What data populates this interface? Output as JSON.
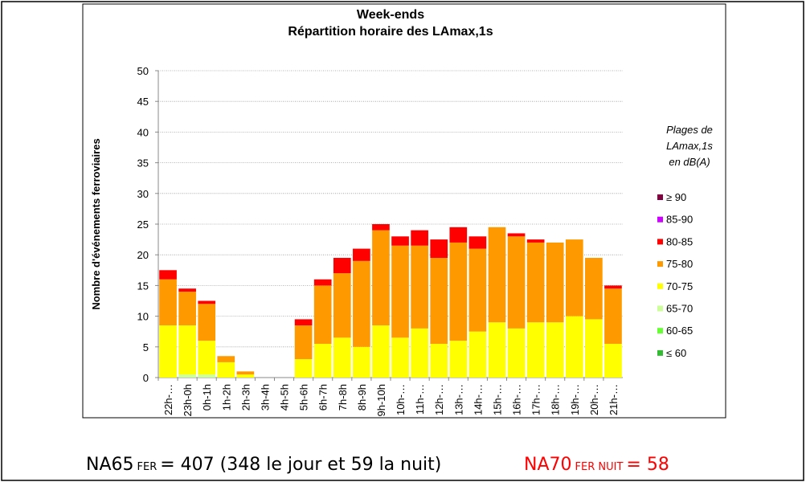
{
  "chart_data": {
    "type": "stacked_bar",
    "title": [
      "Week-ends",
      "Répartition horaire des LAmax,1s"
    ],
    "y_label": "Nombre d'événements ferroviaires",
    "legend_title": [
      "Plages de",
      "LAmax,1s",
      "en dB(A)"
    ],
    "categories": [
      "22h-…",
      "23h-0h",
      "0h-1h",
      "1h-2h",
      "2h-3h",
      "3h-4h",
      "4h-5h",
      "5h-6h",
      "6h-7h",
      "7h-8h",
      "8h-9h",
      "9h-10h",
      "10h-…",
      "11h-…",
      "12h-…",
      "13h-…",
      "14h-…",
      "15h-…",
      "16h-…",
      "17h-…",
      "18h-…",
      "19h-…",
      "20h-…",
      "21h-…"
    ],
    "series": [
      {
        "name": "≤  60",
        "color": "#33bb33",
        "values": [
          0,
          0,
          0,
          0,
          0,
          0,
          0,
          0,
          0,
          0,
          0,
          0,
          0,
          0,
          0,
          0,
          0,
          0,
          0,
          0,
          0,
          0,
          0,
          0
        ]
      },
      {
        "name": "60-65",
        "color": "#66ff33",
        "values": [
          0,
          0,
          0,
          0,
          0,
          0,
          0,
          0,
          0,
          0,
          0,
          0,
          0,
          0,
          0,
          0,
          0,
          0,
          0,
          0,
          0,
          0,
          0,
          0
        ]
      },
      {
        "name": "65-70",
        "color": "#ccff99",
        "values": [
          0,
          0.5,
          0.5,
          0,
          0,
          0,
          0,
          0,
          0,
          0,
          0,
          0,
          0,
          0,
          0,
          0,
          0,
          0,
          0,
          0,
          0,
          0,
          0,
          0
        ]
      },
      {
        "name": "70-75",
        "color": "#ffff00",
        "values": [
          8.5,
          8,
          5.5,
          2.5,
          0.5,
          0,
          0,
          3,
          5.5,
          6.5,
          5,
          8.5,
          6.5,
          8,
          5.5,
          6,
          7.5,
          9,
          8,
          9,
          9,
          10,
          9.5,
          5.5
        ]
      },
      {
        "name": "75-80",
        "color": "#ff9900",
        "values": [
          7.5,
          5.5,
          6,
          1,
          0.5,
          0,
          0,
          5.5,
          9.5,
          10.5,
          14,
          15.5,
          15,
          13.5,
          14,
          16,
          13.5,
          15.5,
          15,
          13,
          13,
          12.5,
          10,
          9
        ]
      },
      {
        "name": "80-85",
        "color": "#ff0000",
        "values": [
          1.5,
          0.5,
          0.5,
          0,
          0,
          0,
          0,
          1,
          1,
          2.5,
          2,
          1,
          1.5,
          2.5,
          3,
          2.5,
          2,
          0,
          0.5,
          0.5,
          0,
          0,
          0,
          0.5
        ]
      },
      {
        "name": "85-90",
        "color": "#cc00ff",
        "values": [
          0,
          0,
          0,
          0,
          0,
          0,
          0,
          0,
          0,
          0,
          0,
          0,
          0,
          0,
          0,
          0,
          0,
          0,
          0,
          0,
          0,
          0,
          0,
          0
        ]
      },
      {
        "name": "≥ 90",
        "color": "#800040",
        "values": [
          0,
          0,
          0,
          0,
          0,
          0,
          0,
          0,
          0,
          0,
          0,
          0,
          0,
          0,
          0,
          0,
          0,
          0,
          0,
          0,
          0,
          0,
          0,
          0
        ]
      }
    ],
    "ylim": [
      0,
      50
    ],
    "yticks": [
      0,
      5,
      10,
      15,
      20,
      25,
      30,
      35,
      40,
      45,
      50
    ],
    "grid": true
  },
  "footer": {
    "left": {
      "main": "NA65",
      "sub": "FER",
      "rest": "= 407 (348 le jour et 59 la nuit)"
    },
    "right": {
      "main": "NA70",
      "sub": "FER NUIT",
      "rest": "= 58"
    }
  }
}
